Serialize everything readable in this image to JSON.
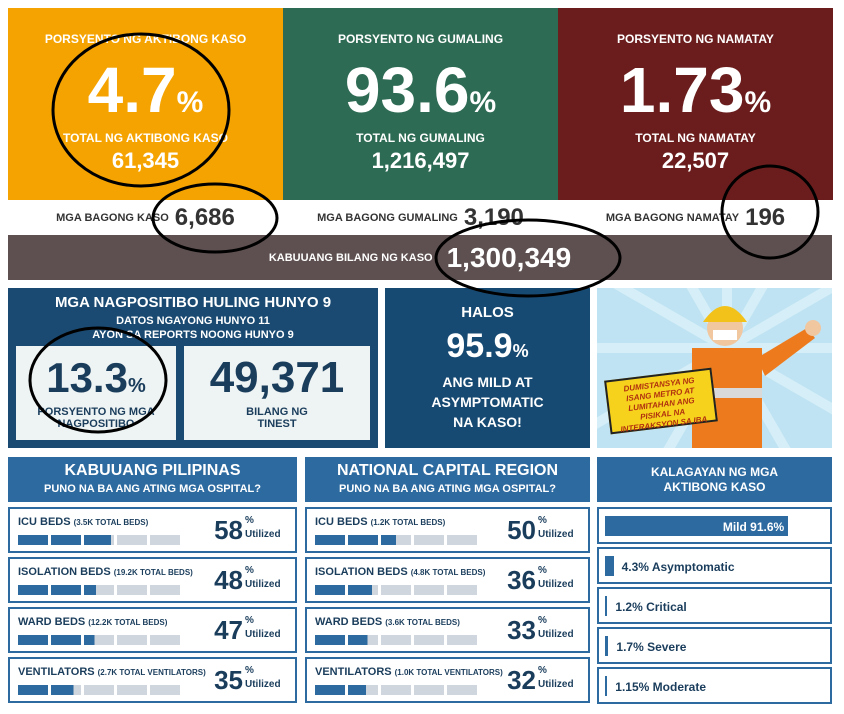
{
  "top_cards": [
    {
      "label": "PORSYENTO NG AKTIBONG KASO",
      "value": "4.7",
      "unit": "%",
      "total_label": "TOTAL NG AKTIBONG KASO",
      "total_value": "61,345"
    },
    {
      "label": "PORSYENTO NG GUMALING",
      "value": "93.6",
      "unit": "%",
      "total_label": "TOTAL NG GUMALING",
      "total_value": "1,216,497"
    },
    {
      "label": "PORSYENTO NG NAMATAY",
      "value": "1.73",
      "unit": "%",
      "total_label": "TOTAL NG NAMATAY",
      "total_value": "22,507"
    }
  ],
  "new_counts": [
    {
      "label": "MGA BAGONG KASO",
      "value": "6,686"
    },
    {
      "label": "MGA BAGONG GUMALING",
      "value": "3,190"
    },
    {
      "label": "MGA BAGONG NAMATAY",
      "value": "196"
    }
  ],
  "total": {
    "label": "KABUUANG BILANG NG KASO",
    "value": "1,300,349"
  },
  "positivity": {
    "title": "MGA NAGPOSITIBO HULING HUNYO 9",
    "lines": [
      "DATOS NGAYONG HUNYO 11",
      "AYON SA REPORTS NOONG HUNYO 9"
    ],
    "rate": {
      "value": "13.3",
      "unit": "%",
      "label": "PORSYENTO NG MGA NAGPOSITIBO"
    },
    "tested": {
      "value": "49,371",
      "label": "BILANG NG TINEST"
    }
  },
  "mild": {
    "prefix": "HALOS",
    "value": "95.9",
    "unit": "%",
    "text": "ANG MILD AT ASYMPTOMATIC NA KASO!"
  },
  "poster": {
    "text": "DUMISTANSYA NG ISANG METRO AT LUMITAHAN ANG PISIKAL NA INTERAKSYON SA IBA"
  },
  "hospitals": [
    {
      "title": "KABUUANG PILIPINAS",
      "subtitle": "PUNO NA BA ANG ATING MGA OSPITAL?",
      "rows": [
        {
          "name": "ICU BEDS",
          "capacity": "(3.5K TOTAL BEDS)",
          "value": 58,
          "unit": "%",
          "note": "Utilized"
        },
        {
          "name": "ISOLATION BEDS",
          "capacity": "(19.2K TOTAL BEDS)",
          "value": 48,
          "unit": "%",
          "note": "Utilized"
        },
        {
          "name": "WARD BEDS",
          "capacity": "(12.2K TOTAL BEDS)",
          "value": 47,
          "unit": "%",
          "note": "Utilized"
        },
        {
          "name": "VENTILATORS",
          "capacity": "(2.7K TOTAL VENTILATORS)",
          "value": 35,
          "unit": "%",
          "note": "Utilized"
        }
      ]
    },
    {
      "title": "NATIONAL CAPITAL REGION",
      "subtitle": "PUNO NA BA ANG ATING MGA OSPITAL?",
      "rows": [
        {
          "name": "ICU BEDS",
          "capacity": "(1.2K TOTAL BEDS)",
          "value": 50,
          "unit": "%",
          "note": "Utilized"
        },
        {
          "name": "ISOLATION BEDS",
          "capacity": "(4.8K TOTAL BEDS)",
          "value": 36,
          "unit": "%",
          "note": "Utilized"
        },
        {
          "name": "WARD BEDS",
          "capacity": "(3.6K TOTAL BEDS)",
          "value": 33,
          "unit": "%",
          "note": "Utilized"
        },
        {
          "name": "VENTILATORS",
          "capacity": "(1.0K TOTAL VENTILATORS)",
          "value": 32,
          "unit": "%",
          "note": "Utilized"
        }
      ]
    }
  ],
  "status": {
    "title": "KALAGAYAN NG MGA AKTIBONG KASO",
    "items": [
      {
        "label": "Mild 91.6%",
        "value": 91.6
      },
      {
        "label": "4.3% Asymptomatic",
        "value": 4.3
      },
      {
        "label": "1.2% Critical",
        "value": 1.2
      },
      {
        "label": "1.7% Severe",
        "value": 1.7
      },
      {
        "label": "1.15% Moderate",
        "value": 1.15
      }
    ]
  }
}
